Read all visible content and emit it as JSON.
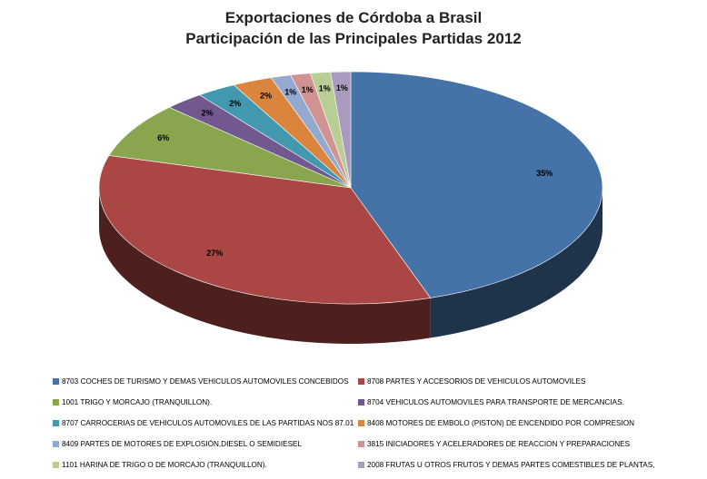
{
  "chart_data": {
    "type": "pie",
    "title": "Exportaciones de Córdoba a Brasil",
    "subtitle": "Participación de las Principales Partidas 2012",
    "legend_position": "bottom",
    "slices": [
      {
        "label": "8703 COCHES DE TURISMO Y DEMAS VEHICULOS AUTOMOVILES CONCEBIDOS",
        "value": 35,
        "value_label": "35%",
        "color": "#4572A7"
      },
      {
        "label": "8708 PARTES Y ACCESORIOS DE VEHICULOS AUTOMOVILES",
        "value": 27,
        "value_label": "27%",
        "color": "#AA4643"
      },
      {
        "label": "1001 TRIGO Y MORCAJO (TRANQUILLON).",
        "value": 6,
        "value_label": "6%",
        "color": "#89A54E"
      },
      {
        "label": "8704 VEHICULOS AUTOMOVILES PARA TRANSPORTE DE MERCANCIAS.",
        "value": 2,
        "value_label": "2%",
        "color": "#71588F"
      },
      {
        "label": "8707 CARROCERIAS DE VEHICULOS AUTOMOVILES DE LAS PARTIDAS NOS 87.01",
        "value": 2,
        "value_label": "2%",
        "color": "#4198AF"
      },
      {
        "label": "8408 MOTORES DE EMBOLO (PISTON) DE ENCENDIDO POR COMPRESION",
        "value": 2,
        "value_label": "2%",
        "color": "#DB843D"
      },
      {
        "label": "8409 PARTES DE MOTORES DE EXPLOSIÓN,DIESEL O SEMIDIESEL",
        "value": 1,
        "value_label": "1%",
        "color": "#93A9CF"
      },
      {
        "label": "3815 INICIADORES Y ACELERADORES DE REACCION Y PREPARACIONES",
        "value": 1,
        "value_label": "1%",
        "color": "#D19392"
      },
      {
        "label": "1101 HARINA DE TRIGO O DE MORCAJO (TRANQUILLON).",
        "value": 1,
        "value_label": "1%",
        "color": "#B9CD96"
      },
      {
        "label": "2008 FRUTAS U OTROS FRUTOS Y DEMAS PARTES COMESTIBLES DE PLANTAS,",
        "value": 1,
        "value_label": "1%",
        "color": "#A99BBD"
      }
    ]
  }
}
